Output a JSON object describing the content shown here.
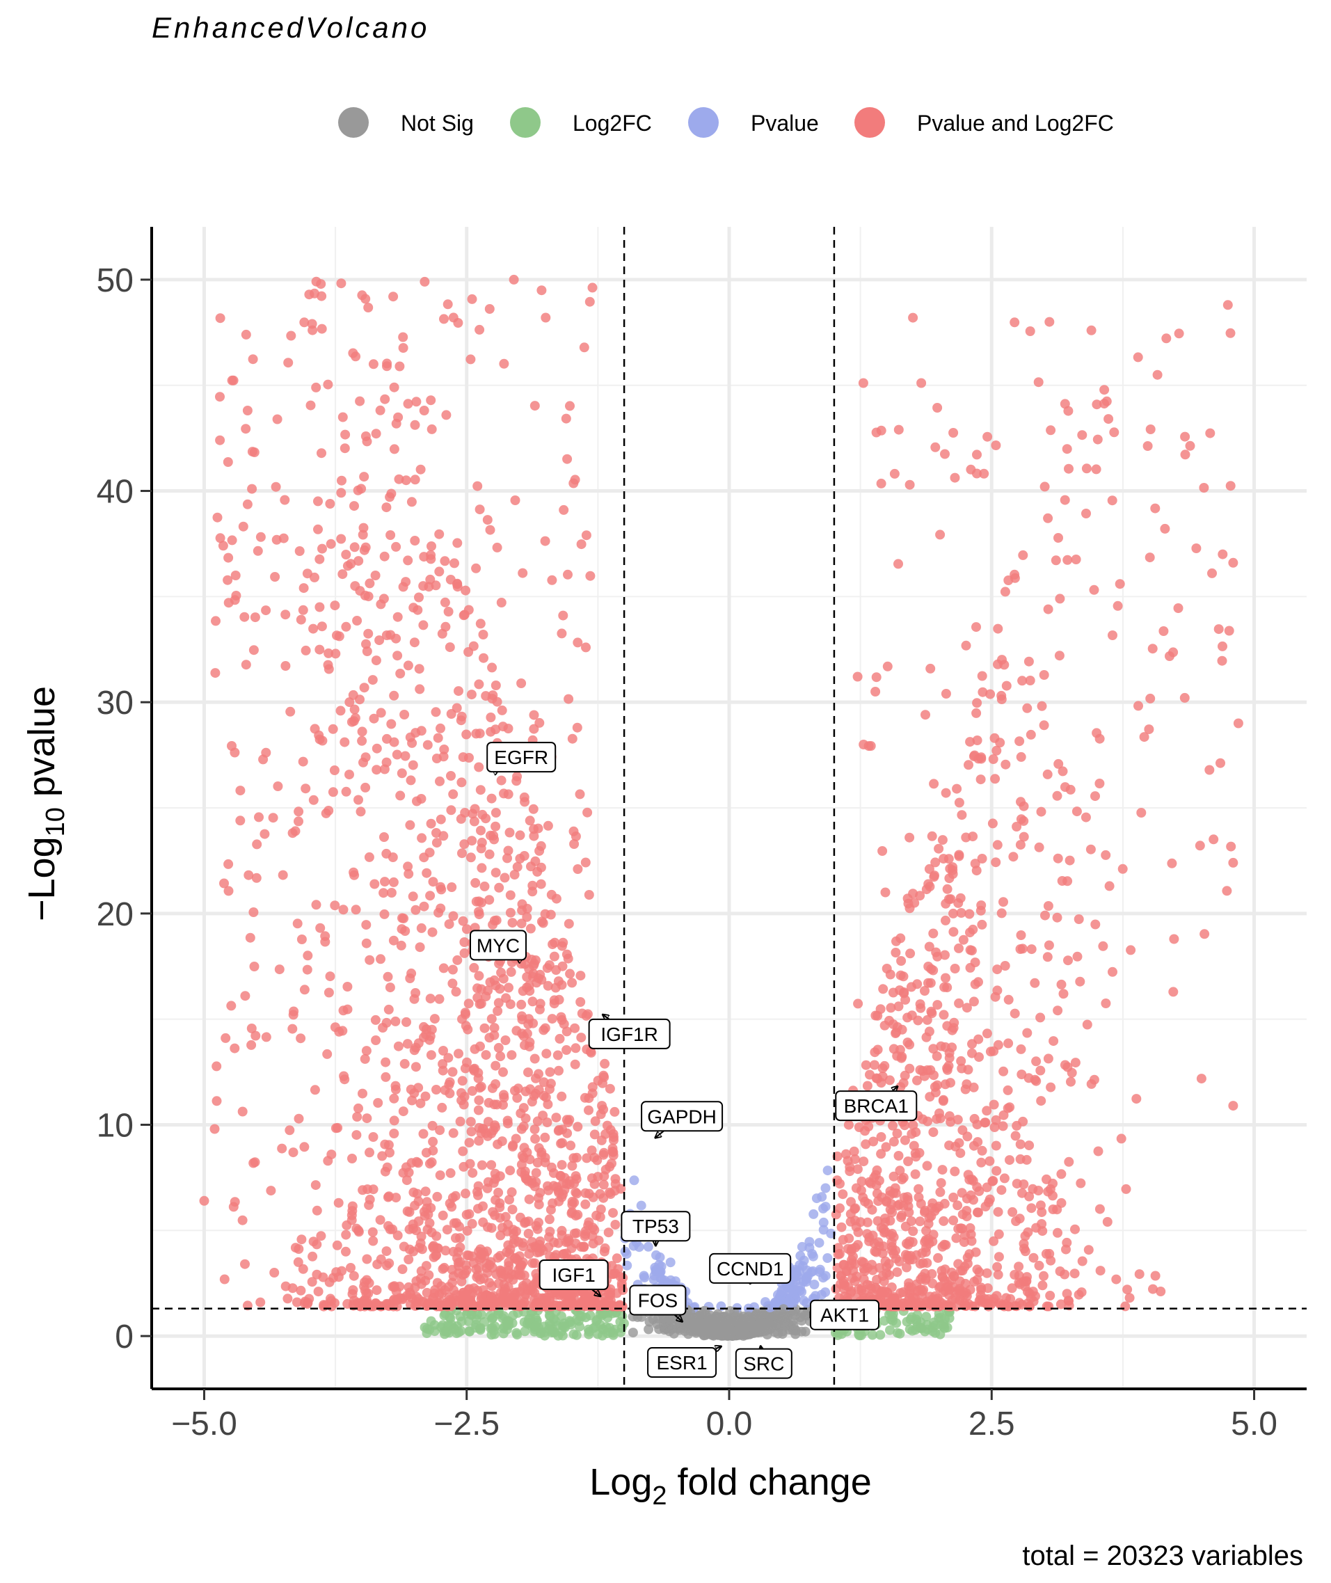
{
  "chart_data": {
    "type": "scatter",
    "title": "EnhancedVolcano",
    "xlabel_main": "Log",
    "xlabel_sub": "2",
    "xlabel_rest": " fold change",
    "ylabel_prefix": "−Log",
    "ylabel_sub": "10",
    "ylabel_rest": " pvalue",
    "caption": "total = 20323 variables",
    "xlim": [
      -5.5,
      5.5
    ],
    "ylim": [
      -2.5,
      52.5
    ],
    "x_ticks": [
      -5.0,
      -2.5,
      0.0,
      2.5,
      5.0
    ],
    "x_tick_labels": [
      "−5.0",
      "−2.5",
      "0.0",
      "2.5",
      "5.0"
    ],
    "y_ticks": [
      0,
      10,
      20,
      30,
      40,
      50
    ],
    "y_tick_labels": [
      "0",
      "10",
      "20",
      "30",
      "40",
      "50"
    ],
    "y_minor_ticks": [
      5,
      15,
      25,
      35,
      45
    ],
    "grid": true,
    "legend_position": "top",
    "fc_cutoff": 1.0,
    "p_cutoff_log10": 1.3,
    "total_points": 20323,
    "categories": [
      {
        "name": "Not Sig",
        "color": "#999999"
      },
      {
        "name": "Log2FC",
        "color": "#8fc88a"
      },
      {
        "name": "Pvalue",
        "color": "#9daaec"
      },
      {
        "name": "Pvalue and Log2FC",
        "color": "#f27c7c"
      }
    ],
    "labeled_points": [
      {
        "gene": "EGFR",
        "x": -2.2,
        "y": 26.8,
        "label_x": -1.98,
        "label_y": 27.4
      },
      {
        "gene": "MYC",
        "x": -2.02,
        "y": 17.9,
        "label_x": -2.2,
        "label_y": 18.5
      },
      {
        "gene": "IGF1R",
        "x": -1.2,
        "y": 15.2,
        "label_x": -0.95,
        "label_y": 14.3
      },
      {
        "gene": "GAPDH",
        "x": -0.7,
        "y": 9.4,
        "label_x": -0.45,
        "label_y": 10.4
      },
      {
        "gene": "TP53",
        "x": -0.7,
        "y": 4.3,
        "label_x": -0.7,
        "label_y": 5.2
      },
      {
        "gene": "IGF1",
        "x": -1.23,
        "y": 1.9,
        "label_x": -1.48,
        "label_y": 2.9
      },
      {
        "gene": "FOS",
        "x": -0.45,
        "y": 0.7,
        "label_x": -0.68,
        "label_y": 1.7
      },
      {
        "gene": "ESR1",
        "x": -0.08,
        "y": -0.5,
        "label_x": -0.45,
        "label_y": -1.25
      },
      {
        "gene": "SRC",
        "x": 0.3,
        "y": -0.5,
        "label_x": 0.33,
        "label_y": -1.3
      },
      {
        "gene": "CCND1",
        "x": 0.2,
        "y": 2.5,
        "label_x": 0.2,
        "label_y": 3.2
      },
      {
        "gene": "AKT1",
        "x": 0.82,
        "y": 1.0,
        "label_x": 1.1,
        "label_y": 1.0
      },
      {
        "gene": "BRCA1",
        "x": 1.6,
        "y": 11.8,
        "label_x": 1.4,
        "label_y": 10.9
      }
    ]
  }
}
